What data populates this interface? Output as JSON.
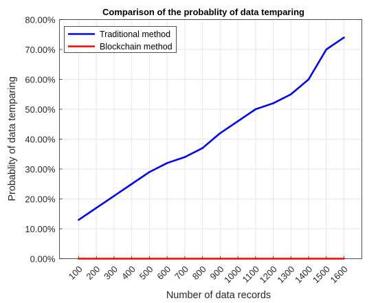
{
  "chart_data": {
    "type": "line",
    "title": "Comparison of the probablity of data temparing",
    "xlabel": "Number of data records",
    "ylabel": "Probablity of data temparing",
    "categories": [
      "100",
      "200",
      "300",
      "400",
      "500",
      "600",
      "700",
      "800",
      "900",
      "1000",
      "1100",
      "1200",
      "1300",
      "1400",
      "1500",
      "1600"
    ],
    "y_ticks": [
      "0.00%",
      "10.00%",
      "20.00%",
      "30.00%",
      "40.00%",
      "50.00%",
      "60.00%",
      "70.00%",
      "80.00%"
    ],
    "ylim": [
      0,
      80
    ],
    "y_unit": "percent",
    "grid": true,
    "legend_position": "top-left",
    "series": [
      {
        "name": "Traditional method",
        "color": "#0000ff",
        "values": [
          13,
          17,
          21,
          25,
          29,
          32,
          34,
          37,
          42,
          46,
          50,
          52,
          55,
          60,
          70,
          74
        ]
      },
      {
        "name": "Blockchain method",
        "color": "#ff0000",
        "values": [
          0,
          0,
          0,
          0,
          0,
          0,
          0,
          0,
          0,
          0,
          0,
          0,
          0,
          0,
          0,
          0
        ]
      }
    ]
  }
}
